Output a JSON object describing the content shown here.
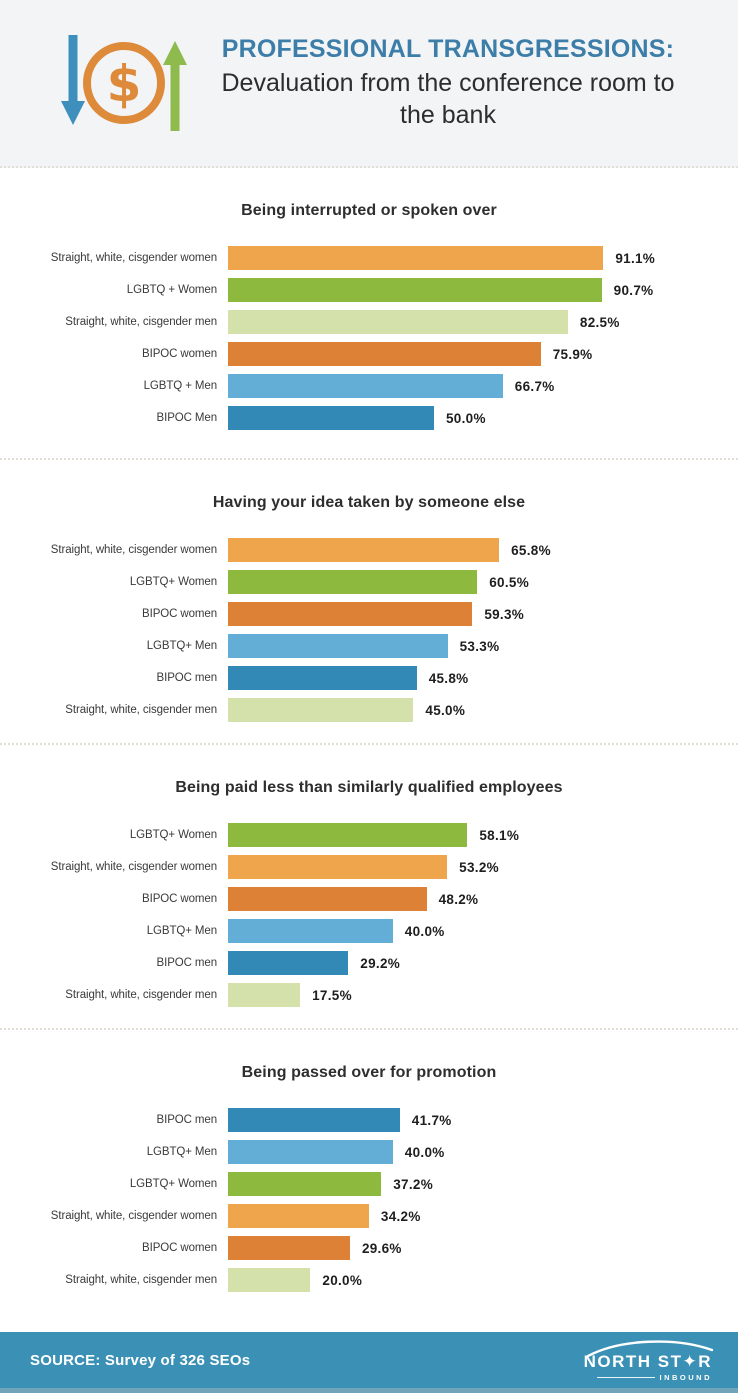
{
  "header": {
    "title": "PROFESSIONAL TRANSGRESSIONS:",
    "subtitle": "Devaluation from the conference room to the bank"
  },
  "colors": {
    "header_bg": "#f3f4f6",
    "title_blue": "#3d7ea9",
    "footer_bg": "#3b90b6",
    "orange": "#efa54b",
    "green": "#8db93f",
    "light_green": "#d5e1ab",
    "dark_orange": "#dc8136",
    "light_blue": "#63aed6",
    "dark_blue": "#3389b5",
    "icon_blue": "#3e8fbb",
    "icon_orange": "#dd8a3a",
    "icon_green": "#8fba4d"
  },
  "chart_data": [
    {
      "type": "bar",
      "orientation": "horizontal",
      "title": "Being interrupted or spoken over",
      "categories": [
        "Straight, white, cisgender women",
        "LGBTQ + Women",
        "Straight, white, cisgender men",
        "BIPOC women",
        "LGBTQ + Men",
        "BIPOC Men"
      ],
      "values": [
        91.1,
        90.7,
        82.5,
        75.9,
        66.7,
        50.0
      ],
      "value_labels": [
        "91.1%",
        "90.7%",
        "82.5%",
        "75.9%",
        "66.7%",
        "50.0%"
      ],
      "bar_colors": [
        "#efa54b",
        "#8db93f",
        "#d5e1ab",
        "#dc8136",
        "#63aed6",
        "#3389b5"
      ],
      "xlim": [
        0,
        100
      ],
      "grid": false,
      "legend": false
    },
    {
      "type": "bar",
      "orientation": "horizontal",
      "title": "Having your idea taken by someone else",
      "categories": [
        "Straight, white, cisgender women",
        "LGBTQ+ Women",
        "BIPOC women",
        "LGBTQ+ Men",
        "BIPOC men",
        "Straight, white, cisgender men"
      ],
      "values": [
        65.8,
        60.5,
        59.3,
        53.3,
        45.8,
        45.0
      ],
      "value_labels": [
        "65.8%",
        "60.5%",
        "59.3%",
        "53.3%",
        "45.8%",
        "45.0%"
      ],
      "bar_colors": [
        "#efa54b",
        "#8db93f",
        "#dc8136",
        "#63aed6",
        "#3389b5",
        "#d5e1ab"
      ],
      "xlim": [
        0,
        100
      ],
      "grid": false,
      "legend": false
    },
    {
      "type": "bar",
      "orientation": "horizontal",
      "title": "Being paid less than similarly qualified employees",
      "categories": [
        "LGBTQ+ Women",
        "Straight, white, cisgender women",
        "BIPOC women",
        "LGBTQ+ Men",
        "BIPOC men",
        "Straight, white, cisgender men"
      ],
      "values": [
        58.1,
        53.2,
        48.2,
        40.0,
        29.2,
        17.5
      ],
      "value_labels": [
        "58.1%",
        "53.2%",
        "48.2%",
        "40.0%",
        "29.2%",
        "17.5%"
      ],
      "bar_colors": [
        "#8db93f",
        "#efa54b",
        "#dc8136",
        "#63aed6",
        "#3389b5",
        "#d5e1ab"
      ],
      "xlim": [
        0,
        100
      ],
      "grid": false,
      "legend": false
    },
    {
      "type": "bar",
      "orientation": "horizontal",
      "title": "Being passed over for promotion",
      "categories": [
        "BIPOC men",
        "LGBTQ+ Men",
        "LGBTQ+ Women",
        "Straight, white, cisgender women",
        "BIPOC women",
        "Straight, white, cisgender men"
      ],
      "values": [
        41.7,
        40.0,
        37.2,
        34.2,
        29.6,
        20.0
      ],
      "value_labels": [
        "41.7%",
        "40.0%",
        "37.2%",
        "34.2%",
        "29.6%",
        "20.0%"
      ],
      "bar_colors": [
        "#3389b5",
        "#63aed6",
        "#8db93f",
        "#efa54b",
        "#dc8136",
        "#d5e1ab"
      ],
      "xlim": [
        0,
        100
      ],
      "grid": false,
      "legend": false
    }
  ],
  "footer": {
    "source": "SOURCE: Survey of 326 SEOs",
    "logo_text": "NORTH ST✦R",
    "logo_sub": "INBOUND"
  }
}
